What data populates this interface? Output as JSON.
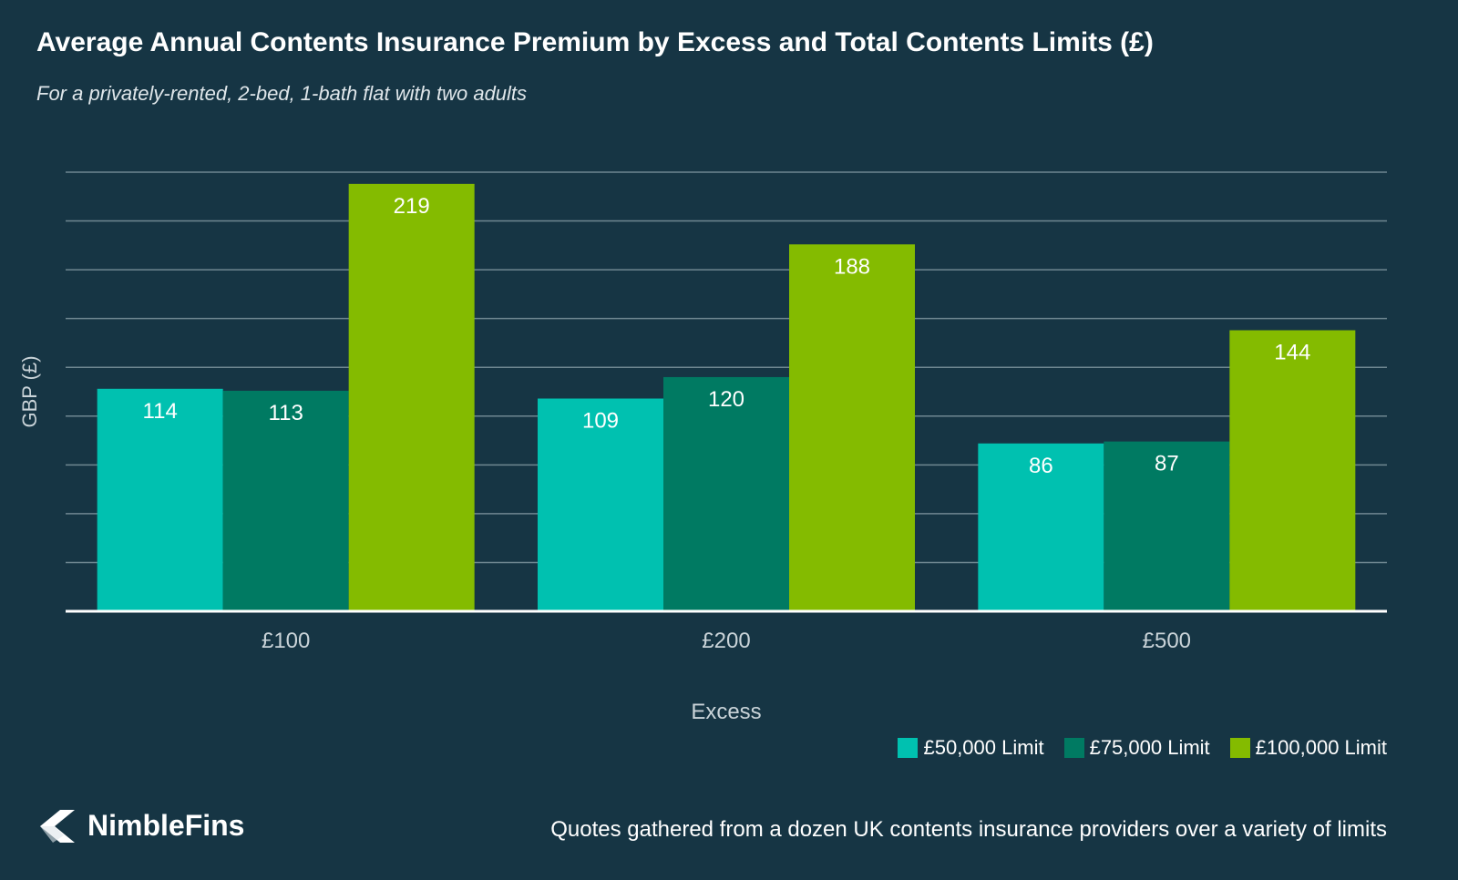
{
  "colors": {
    "background": "#163544",
    "series": [
      "#00c1b0",
      "#007a62",
      "#84bb00"
    ],
    "gridline": "#6f8791",
    "baseline": "#ffffff",
    "axis_text": "#c9d3d8"
  },
  "brand": {
    "name": "NimbleFins",
    "icon": "nimblefins-chevron-icon"
  },
  "footnote": "Quotes gathered from a dozen UK contents insurance providers over a variety of limits",
  "chart_data": {
    "type": "bar",
    "title": "Average Annual Contents Insurance Premium by Excess and Total Contents Limits (£)",
    "subtitle": "For a privately-rented, 2-bed, 1-bath flat with two adults",
    "xlabel": "Excess",
    "ylabel": "GBP (£)",
    "categories": [
      "£100",
      "£200",
      "£500"
    ],
    "series": [
      {
        "name": "£50,000 Limit",
        "values": [
          114,
          109,
          86
        ]
      },
      {
        "name": "£75,000 Limit",
        "values": [
          113,
          120,
          87
        ]
      },
      {
        "name": "£100,000 Limit",
        "values": [
          219,
          188,
          144
        ]
      }
    ],
    "ylim": [
      0,
      225
    ],
    "ytick_step": 25,
    "grid": true,
    "legend_position": "bottom-right",
    "data_labels": true
  }
}
